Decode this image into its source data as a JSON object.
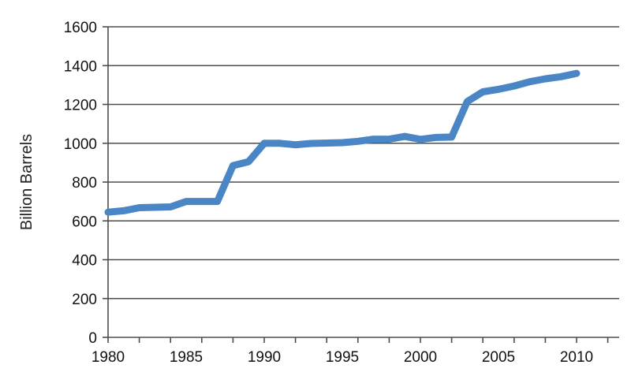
{
  "chart_data": {
    "type": "line",
    "title": "",
    "xlabel": "",
    "ylabel": "Billion Barrels",
    "xlim": [
      1980,
      2012
    ],
    "ylim": [
      0,
      1600
    ],
    "xticks": [
      1980,
      1985,
      1990,
      1995,
      2000,
      2005,
      2010
    ],
    "yticks": [
      0,
      200,
      400,
      600,
      800,
      1000,
      1200,
      1400,
      1600
    ],
    "grid": "horizontal",
    "legend": "none",
    "series": [
      {
        "color": "#4a86c5",
        "x": [
          1980,
          1981,
          1982,
          1983,
          1984,
          1985,
          1986,
          1987,
          1988,
          1989,
          1990,
          1991,
          1992,
          1993,
          1994,
          1995,
          1996,
          1997,
          1998,
          1999,
          2000,
          2001,
          2002,
          2003,
          2004,
          2005,
          2006,
          2007,
          2008,
          2009,
          2010
        ],
        "y": [
          645,
          652,
          668,
          670,
          672,
          700,
          700,
          700,
          885,
          905,
          1000,
          1000,
          992,
          999,
          1001,
          1003,
          1010,
          1021,
          1021,
          1035,
          1020,
          1030,
          1032,
          1215,
          1265,
          1278,
          1295,
          1317,
          1332,
          1343,
          1360
        ]
      }
    ]
  }
}
